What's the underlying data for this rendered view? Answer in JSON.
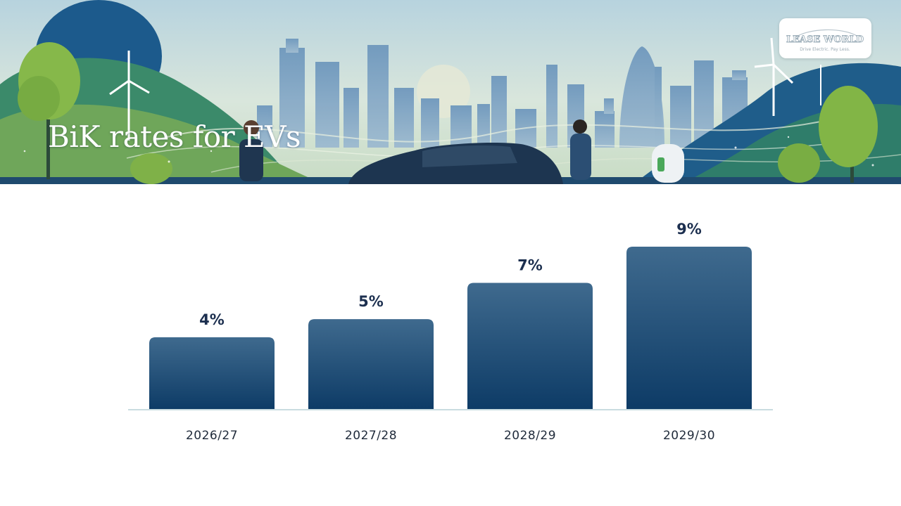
{
  "title": "BiK rates for EVs",
  "logo": {
    "name": "LEASE WORLD",
    "tagline": "Drive Electric. Pay Less."
  },
  "colors": {
    "bar_top": "#3f6a8e",
    "bar_bottom": "#0d3b66",
    "label": "#1c2f4f",
    "axis": "#c9dce0"
  },
  "chart_data": {
    "type": "bar",
    "categories": [
      "2026/27",
      "2027/28",
      "2028/29",
      "2029/30"
    ],
    "values": [
      4,
      5,
      7,
      9
    ],
    "value_labels": [
      "4%",
      "5%",
      "7%",
      "9%"
    ],
    "unit": "%",
    "xlabel": "",
    "ylabel": "",
    "ylim": [
      0,
      9
    ],
    "grid": false,
    "legend": "none"
  }
}
